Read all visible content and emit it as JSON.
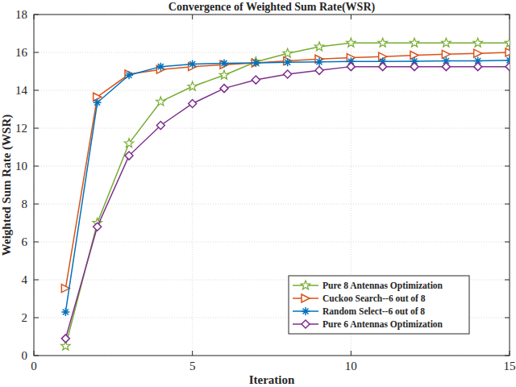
{
  "chart_data": {
    "type": "line",
    "title": "Convergence of Weighted Sum Rate(WSR)",
    "x_label": "Iteration",
    "y_label": "Weighted Sum Rate (WSR)",
    "x": [
      1,
      2,
      3,
      4,
      5,
      6,
      7,
      8,
      9,
      10,
      11,
      12,
      13,
      14,
      15
    ],
    "series": [
      {
        "name": "Pure 8 Antennas Optimization",
        "color": "#77ac30",
        "marker": "star",
        "line_style": "solid",
        "values": [
          0.5,
          7.0,
          11.2,
          13.4,
          14.2,
          14.8,
          15.5,
          15.95,
          16.3,
          16.5,
          16.5,
          16.5,
          16.5,
          16.5,
          16.5
        ]
      },
      {
        "name": "Cuckoo Search--6 out of 8",
        "color": "#d95319",
        "marker": "triangle-right",
        "line_style": "solid",
        "values": [
          3.55,
          13.65,
          14.85,
          15.1,
          15.25,
          15.35,
          15.45,
          15.55,
          15.65,
          15.72,
          15.78,
          15.85,
          15.9,
          15.95,
          16.0
        ]
      },
      {
        "name": "Random Select--6 out of 8",
        "color": "#0072bd",
        "marker": "asterisk",
        "line_style": "solid",
        "values": [
          2.3,
          13.35,
          14.8,
          15.25,
          15.38,
          15.43,
          15.45,
          15.48,
          15.5,
          15.52,
          15.52,
          15.53,
          15.55,
          15.55,
          15.58
        ]
      },
      {
        "name": "Pure 6 Antennas Optimization",
        "color": "#7e2f8e",
        "marker": "diamond",
        "line_style": "solid",
        "values": [
          0.9,
          6.8,
          10.55,
          12.15,
          13.3,
          14.1,
          14.55,
          14.85,
          15.05,
          15.25,
          15.25,
          15.25,
          15.25,
          15.25,
          15.25
        ]
      }
    ],
    "xlim": [
      0,
      15
    ],
    "xticks": [
      0,
      5,
      10,
      15
    ],
    "ylim": [
      0,
      18
    ],
    "yticks": [
      0,
      2,
      4,
      6,
      8,
      10,
      12,
      14,
      16,
      18
    ],
    "grid": true,
    "legend": "lower right"
  }
}
